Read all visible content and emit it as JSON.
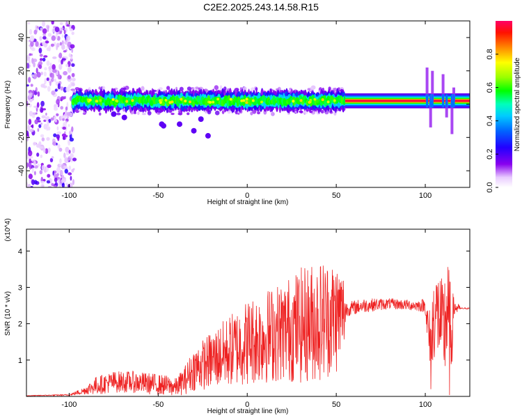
{
  "title": "C2E2.2025.243.14.58.R15",
  "chart_data": [
    {
      "type": "heatmap",
      "xlabel": "Height of straight line (km)",
      "ylabel": "Frequency (Hz)",
      "xlim": [
        -124,
        125
      ],
      "ylim": [
        -50,
        50
      ],
      "x_ticks": [
        -100,
        -50,
        0,
        50,
        100
      ],
      "y_ticks": [
        -40,
        -20,
        0,
        20,
        40
      ],
      "colorbar": {
        "label": "Normalized spectral amplitude",
        "range": [
          0,
          1
        ],
        "ticks": [
          "0.0",
          "0.2",
          "0.4",
          "0.6",
          "0.8"
        ]
      },
      "features": [
        {
          "x_range": [
            -124,
            -98
          ],
          "freq_range": [
            -50,
            50
          ],
          "amplitude": "low, scattered"
        },
        {
          "x_range": [
            -98,
            55
          ],
          "freq_center": 2,
          "freq_width": 6,
          "amplitude": "0.3-0.6, fluctuating"
        },
        {
          "x_range": [
            55,
            125
          ],
          "freq_center": 2,
          "freq_width": 3,
          "amplitude": "~1.0, steady"
        }
      ]
    },
    {
      "type": "line",
      "xlabel": "Height of straight line (km)",
      "ylabel": "SNR (10 * v/v)",
      "y_multiplier": "(x10^4)",
      "xlim": [
        -124,
        125
      ],
      "ylim": [
        0,
        4.6
      ],
      "x_ticks": [
        -100,
        -50,
        0,
        50,
        100
      ],
      "y_ticks": [
        1,
        2,
        3,
        4
      ],
      "color": "#ee2222",
      "envelope_x": [
        -124,
        -100,
        -92,
        -85,
        -75,
        -65,
        -55,
        -45,
        -40,
        -35,
        -30,
        -20,
        -10,
        0,
        10,
        20,
        30,
        40,
        50,
        54,
        56,
        65,
        80,
        95,
        100,
        103,
        105,
        108,
        110,
        112,
        114,
        116,
        120,
        125
      ],
      "envelope_mean": [
        0.02,
        0.04,
        0.15,
        0.3,
        0.4,
        0.4,
        0.35,
        0.3,
        0.25,
        0.45,
        0.75,
        1.0,
        1.25,
        1.5,
        1.65,
        1.8,
        1.95,
        2.1,
        2.2,
        2.3,
        2.4,
        2.5,
        2.55,
        2.5,
        2.5,
        1.2,
        2.3,
        2.2,
        1.6,
        2.4,
        1.4,
        2.45,
        2.42,
        2.42
      ],
      "envelope_amp": [
        0.005,
        0.02,
        0.1,
        0.25,
        0.3,
        0.3,
        0.3,
        0.28,
        0.25,
        0.4,
        0.6,
        0.8,
        1.0,
        1.2,
        1.3,
        1.4,
        1.6,
        1.7,
        1.6,
        1.2,
        0.2,
        0.2,
        0.15,
        0.15,
        0.2,
        1.2,
        1.3,
        1.3,
        1.5,
        1.8,
        1.8,
        0.3,
        0.02,
        0.02
      ]
    }
  ]
}
